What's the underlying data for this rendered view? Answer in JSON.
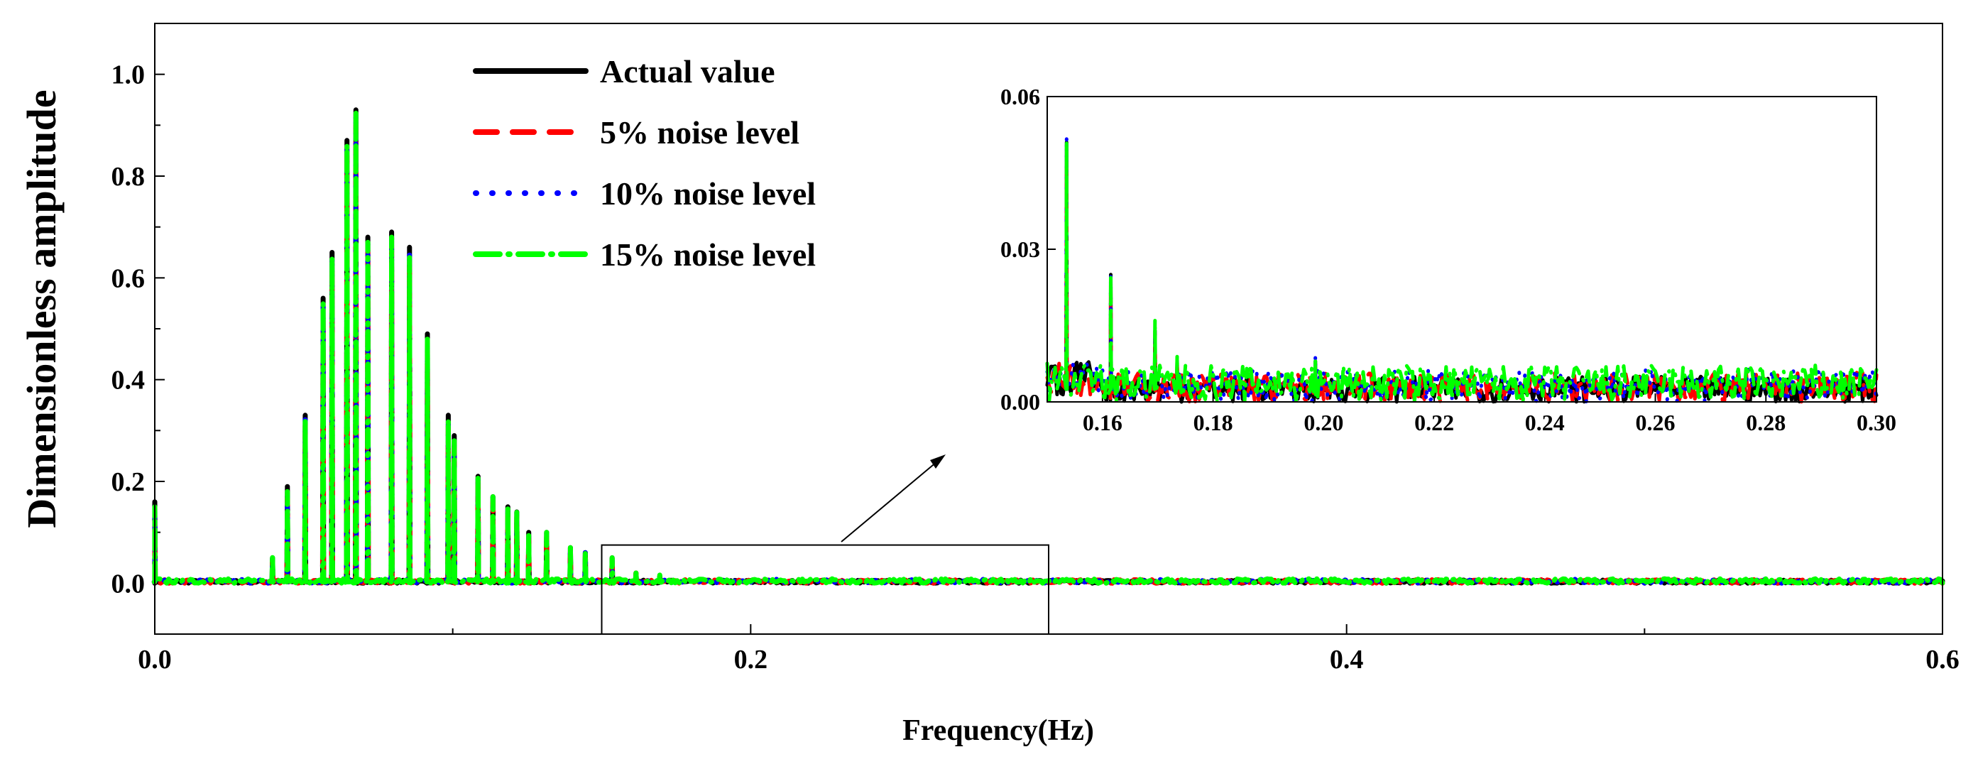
{
  "chart_data": [
    {
      "type": "line",
      "name": "main",
      "xlabel": "Frequency(Hz)",
      "ylabel": "Dimensionless amplitude",
      "xlim": [
        0.0,
        0.6
      ],
      "ylim": [
        -0.1,
        1.1
      ],
      "xticks": [
        0.0,
        0.2,
        0.4,
        0.6
      ],
      "xtick_labels": [
        "0.0",
        "0.2",
        "0.4",
        "0.6"
      ],
      "x_minor_ticks": [
        0.1,
        0.3,
        0.5
      ],
      "yticks": [
        0.0,
        0.2,
        0.4,
        0.6,
        0.8,
        1.0
      ],
      "ytick_labels": [
        "0.0",
        "0.2",
        "0.4",
        "0.6",
        "0.8",
        "1.0"
      ],
      "legend_position": "top-left",
      "series": [
        {
          "name": "Actual value",
          "color": "#000000",
          "style": "solid"
        },
        {
          "name": "5% noise level",
          "color": "#ff0000",
          "style": "dashed"
        },
        {
          "name": "10%  noise level",
          "color": "#0000ff",
          "style": "dotted"
        },
        {
          "name": "15%  noise level",
          "color": "#00ff00",
          "style": "dash-dot"
        }
      ],
      "peaks": [
        {
          "x": 0.0,
          "values": [
            0.16,
            0.12,
            0.14,
            0.15
          ]
        },
        {
          "x": 0.0395,
          "values": [
            0.05,
            0.045,
            0.05,
            0.055
          ]
        },
        {
          "x": 0.0445,
          "values": [
            0.19,
            0.17,
            0.18,
            0.18
          ]
        },
        {
          "x": 0.0505,
          "values": [
            0.33,
            0.31,
            0.33,
            0.32
          ]
        },
        {
          "x": 0.0565,
          "values": [
            0.56,
            0.52,
            0.55,
            0.55
          ]
        },
        {
          "x": 0.0595,
          "values": [
            0.65,
            0.62,
            0.64,
            0.64
          ]
        },
        {
          "x": 0.0645,
          "values": [
            0.87,
            0.84,
            0.86,
            0.86
          ]
        },
        {
          "x": 0.0675,
          "values": [
            0.93,
            0.9,
            0.92,
            0.93
          ]
        },
        {
          "x": 0.0715,
          "values": [
            0.68,
            0.66,
            0.67,
            0.67
          ]
        },
        {
          "x": 0.0795,
          "values": [
            0.69,
            0.66,
            0.68,
            0.68
          ]
        },
        {
          "x": 0.0855,
          "values": [
            0.66,
            0.63,
            0.65,
            0.64
          ]
        },
        {
          "x": 0.0915,
          "values": [
            0.49,
            0.46,
            0.48,
            0.48
          ]
        },
        {
          "x": 0.0985,
          "values": [
            0.33,
            0.31,
            0.32,
            0.32
          ]
        },
        {
          "x": 0.1005,
          "values": [
            0.29,
            0.27,
            0.28,
            0.28
          ]
        },
        {
          "x": 0.1085,
          "values": [
            0.21,
            0.2,
            0.21,
            0.21
          ]
        },
        {
          "x": 0.1135,
          "values": [
            0.17,
            0.16,
            0.17,
            0.17
          ]
        },
        {
          "x": 0.1185,
          "values": [
            0.15,
            0.14,
            0.15,
            0.15
          ]
        },
        {
          "x": 0.1215,
          "values": [
            0.14,
            0.13,
            0.14,
            0.14
          ]
        },
        {
          "x": 0.1255,
          "values": [
            0.1,
            0.09,
            0.1,
            0.1
          ]
        },
        {
          "x": 0.1315,
          "values": [
            0.1,
            0.09,
            0.1,
            0.1
          ]
        },
        {
          "x": 0.1395,
          "values": [
            0.07,
            0.06,
            0.07,
            0.07
          ]
        },
        {
          "x": 0.1445,
          "values": [
            0.06,
            0.05,
            0.06,
            0.06
          ]
        },
        {
          "x": 0.1535,
          "values": [
            0.05,
            0.04,
            0.05,
            0.05
          ]
        },
        {
          "x": 0.1615,
          "values": [
            0.02,
            0.02,
            0.02,
            0.02
          ]
        },
        {
          "x": 0.1695,
          "values": [
            0.014,
            0.012,
            0.013,
            0.016
          ]
        }
      ],
      "noise_floor": 0.005,
      "zoom_box": {
        "x": [
          0.15,
          0.3
        ],
        "y": [
          -0.1,
          0.075
        ]
      }
    },
    {
      "type": "line",
      "name": "inset",
      "xlim": [
        0.15,
        0.3
      ],
      "ylim": [
        0.0,
        0.06
      ],
      "xticks": [
        0.16,
        0.18,
        0.2,
        0.22,
        0.24,
        0.26,
        0.28,
        0.3
      ],
      "xtick_labels": [
        "0.16",
        "0.18",
        "0.20",
        "0.22",
        "0.24",
        "0.26",
        "0.28",
        "0.30"
      ],
      "yticks": [
        0.0,
        0.03,
        0.06
      ],
      "ytick_labels": [
        "0.00",
        "0.03",
        "0.06"
      ],
      "peaks": [
        {
          "x": 0.1535,
          "values": [
            0.051,
            0.046,
            0.052,
            0.051
          ]
        },
        {
          "x": 0.1615,
          "values": [
            0.025,
            0.023,
            0.025,
            0.025
          ]
        },
        {
          "x": 0.1695,
          "values": [
            0.014,
            0.012,
            0.013,
            0.016
          ]
        },
        {
          "x": 0.1735,
          "values": [
            0.008,
            0.007,
            0.008,
            0.009
          ]
        },
        {
          "x": 0.1985,
          "values": [
            0.008,
            0.006,
            0.009,
            0.008
          ]
        }
      ],
      "noise_floor": 0.005
    }
  ]
}
